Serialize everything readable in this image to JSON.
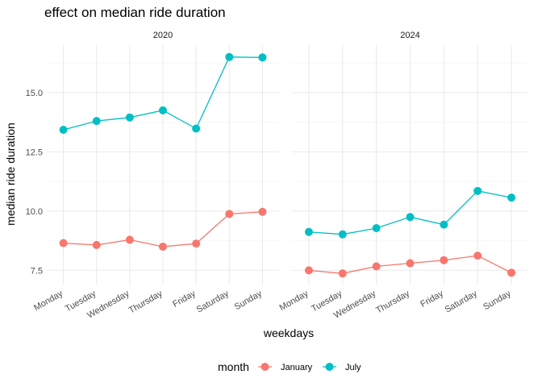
{
  "chart_data": {
    "type": "line",
    "title": "effect on median ride duration",
    "xlabel": "weekdays",
    "ylabel": "median ride duration",
    "categories": [
      "Monday",
      "Tuesday",
      "Wednesday",
      "Thursday",
      "Friday",
      "Saturday",
      "Sunday"
    ],
    "yticks": [
      7.5,
      10.0,
      12.5,
      15.0
    ],
    "ytick_labels": [
      "7.5",
      "10.0",
      "12.5",
      "15.0"
    ],
    "ylim": [
      6.9,
      17.0
    ],
    "grid": true,
    "legend": {
      "title": "month",
      "placement": "bottom",
      "entries": [
        "January",
        "July"
      ]
    },
    "colors": {
      "January": "#F8766D",
      "July": "#00BFC4"
    },
    "facets": [
      {
        "label": "2020",
        "series": [
          {
            "name": "January",
            "values": [
              8.65,
              8.57,
              8.79,
              8.5,
              8.63,
              9.88,
              9.97
            ]
          },
          {
            "name": "July",
            "values": [
              13.43,
              13.8,
              13.95,
              14.25,
              13.48,
              16.5,
              16.48
            ]
          }
        ]
      },
      {
        "label": "2024",
        "series": [
          {
            "name": "January",
            "values": [
              7.5,
              7.37,
              7.67,
              7.8,
              7.93,
              8.12,
              7.4
            ]
          },
          {
            "name": "July",
            "values": [
              9.12,
              9.02,
              9.28,
              9.75,
              9.43,
              10.85,
              10.57
            ]
          }
        ]
      }
    ]
  }
}
